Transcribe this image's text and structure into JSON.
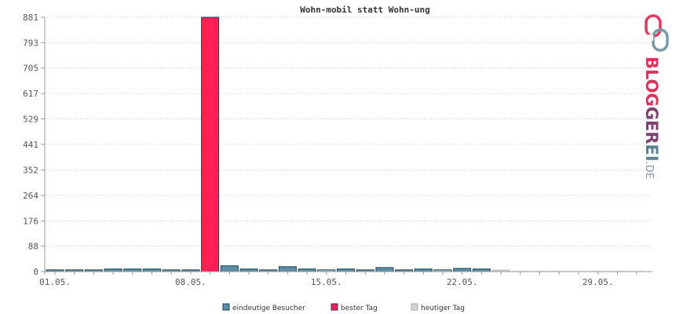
{
  "chart_data": {
    "type": "bar",
    "title": "Wohn-mobil statt Wohn-ung",
    "xlabel": "",
    "ylabel": "",
    "ylim": [
      0,
      881
    ],
    "y_ticks": [
      0,
      88,
      176,
      264,
      352,
      441,
      529,
      617,
      705,
      793,
      881
    ],
    "x_tick_labels": [
      {
        "day": 1,
        "label": "01.05."
      },
      {
        "day": 8,
        "label": "08.05."
      },
      {
        "day": 15,
        "label": "15.05."
      },
      {
        "day": 22,
        "label": "22.05."
      },
      {
        "day": 29,
        "label": "29.05."
      }
    ],
    "days": [
      1,
      2,
      3,
      4,
      5,
      6,
      7,
      8,
      9,
      10,
      11,
      12,
      13,
      14,
      15,
      16,
      17,
      18,
      19,
      20,
      21,
      22,
      23,
      24,
      25,
      26,
      27,
      28,
      29,
      30,
      31
    ],
    "values": [
      6,
      6,
      6,
      9,
      9,
      9,
      6,
      6,
      881,
      20,
      9,
      6,
      17,
      9,
      6,
      9,
      6,
      14,
      6,
      9,
      6,
      11,
      9,
      4,
      0,
      0,
      0,
      0,
      0,
      0,
      0
    ],
    "bar_kinds": [
      "normal",
      "normal",
      "normal",
      "normal",
      "normal",
      "normal",
      "normal",
      "normal",
      "best",
      "normal",
      "normal",
      "normal",
      "normal",
      "normal",
      "light",
      "normal",
      "normal",
      "normal",
      "normal",
      "normal",
      "light",
      "normal",
      "normal",
      "today",
      "empty",
      "empty",
      "empty",
      "empty",
      "empty",
      "empty",
      "empty"
    ],
    "grid": true,
    "legend_position": "bottom-center",
    "legend": [
      {
        "key": "normal",
        "label": "eindeutige Besucher"
      },
      {
        "key": "best",
        "label": "bester Tag"
      },
      {
        "key": "today",
        "label": "heutiger Tag"
      }
    ],
    "colors": {
      "normal": "#5b8fa8",
      "light": "#8ec3d9",
      "best": "#ff1e56",
      "today": "#d4d4d4",
      "empty": "#eeeeee",
      "bar_stroke": "#1f3f52",
      "grid": "#cccccc",
      "axis": "#999999",
      "tick_text": "#555555"
    }
  },
  "brand": {
    "logo_text": "BLOGGEREI",
    "logo_suffix": ".DE",
    "colors": {
      "pink": "#e0365f",
      "purple": "#7d4472",
      "blue": "#5b7f95",
      "gray": "#8a9aa6"
    }
  }
}
